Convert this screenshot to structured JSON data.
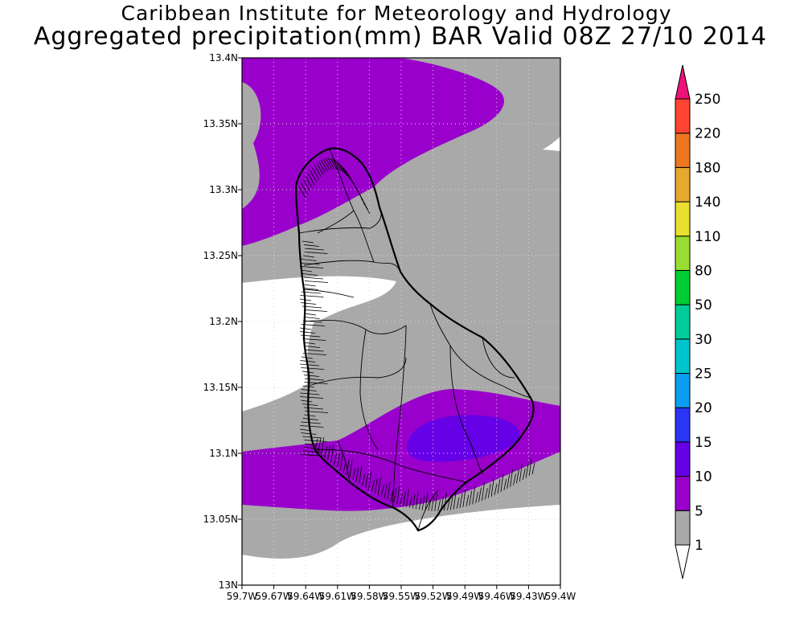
{
  "title_line1": "Caribbean Institute for Meteorology and Hydrology",
  "title_line2": "Aggregated precipitation(mm) BAR Valid 08Z 27/10 2014",
  "chart_data": {
    "type": "heatmap",
    "region": "Barbados",
    "lat_range": [
      13.0,
      13.4
    ],
    "lon_range": [
      -59.7,
      -59.4
    ],
    "lat_ticks": [
      "13N",
      "13.05N",
      "13.1N",
      "13.15N",
      "13.2N",
      "13.25N",
      "13.3N",
      "13.35N",
      "13.4N"
    ],
    "lon_ticks": [
      "59.7W",
      "59.67W",
      "59.64W",
      "59.61W",
      "59.58W",
      "59.55W",
      "59.52W",
      "59.49W",
      "59.46W",
      "59.43W",
      "59.4W"
    ],
    "grid": true,
    "units": "mm",
    "colorbar": {
      "placement": "right",
      "levels": [
        1,
        5,
        10,
        15,
        20,
        25,
        30,
        50,
        80,
        110,
        140,
        180,
        220,
        250
      ],
      "colors": [
        "#ffffff",
        "#a9a9a9",
        "#9900cc",
        "#6600e6",
        "#2b35f5",
        "#0a9ef0",
        "#00c4cc",
        "#00cc99",
        "#00cc33",
        "#99dd33",
        "#e8e030",
        "#e6a82e",
        "#ee7722",
        "#ff4433",
        "#ee1177"
      ]
    },
    "regions": [
      {
        "name": "gray",
        "range_mm": "1-5",
        "color": "#a9a9a9"
      },
      {
        "name": "purple",
        "range_mm": "5-10",
        "color": "#9900cc"
      },
      {
        "name": "violet",
        "range_mm": "10-15",
        "color": "#6600e6"
      },
      {
        "name": "white",
        "range_mm": "<1",
        "color": "#ffffff"
      }
    ]
  }
}
